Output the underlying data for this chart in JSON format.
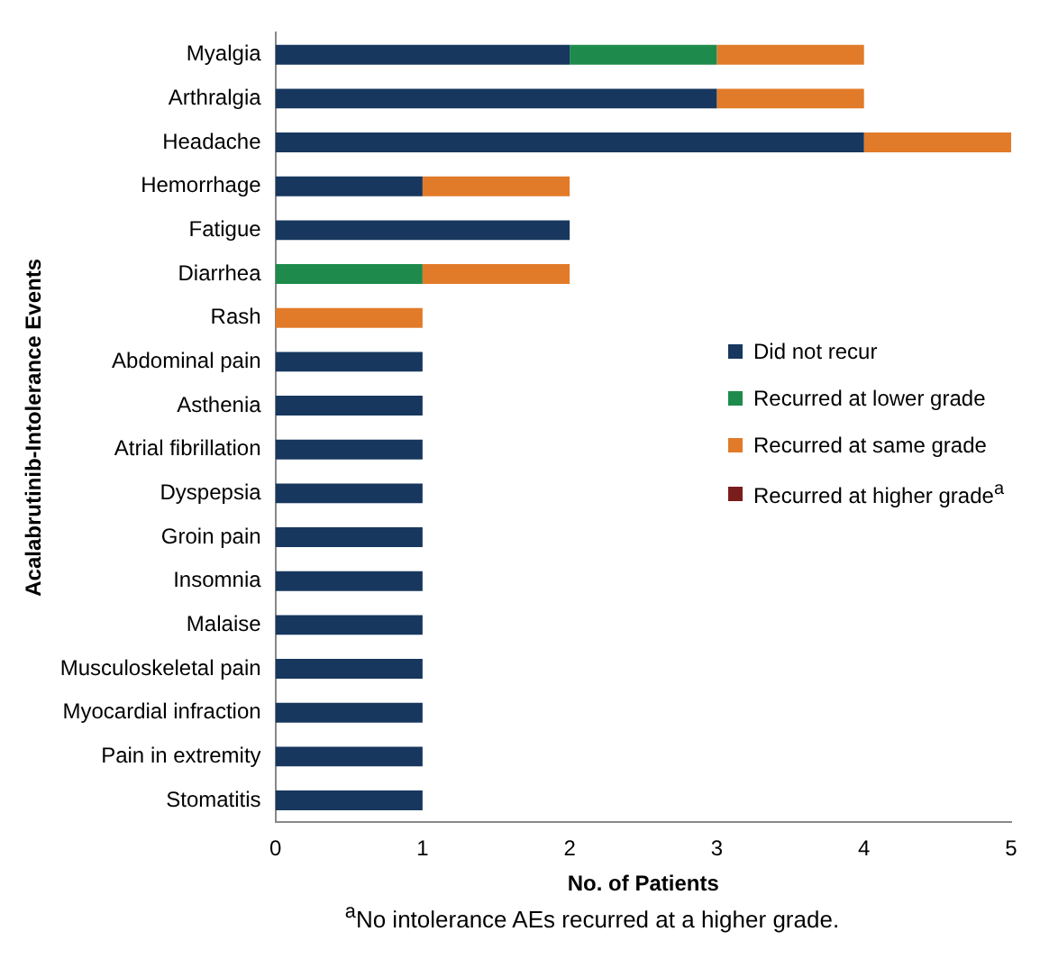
{
  "chart_data": {
    "type": "bar",
    "orientation": "horizontal",
    "stacked": true,
    "xlabel": "No. of Patients",
    "ylabel": "Acalabrutinib-Intolerance Events",
    "categories": [
      "Myalgia",
      "Arthralgia",
      "Headache",
      "Hemorrhage",
      "Fatigue",
      "Diarrhea",
      "Rash",
      "Abdominal pain",
      "Asthenia",
      "Atrial fibrillation",
      "Dyspepsia",
      "Groin pain",
      "Insomnia",
      "Malaise",
      "Musculoskeletal pain",
      "Myocardial infraction",
      "Pain in extremity",
      "Stomatitis"
    ],
    "series": [
      {
        "name": "Did not recur",
        "color": "#17375e",
        "values": [
          2,
          3,
          4,
          1,
          2,
          0,
          0,
          1,
          1,
          1,
          1,
          1,
          1,
          1,
          1,
          1,
          1,
          1
        ]
      },
      {
        "name": "Recurred at lower grade",
        "color": "#1e8b4c",
        "values": [
          1,
          0,
          0,
          0,
          0,
          1,
          0,
          0,
          0,
          0,
          0,
          0,
          0,
          0,
          0,
          0,
          0,
          0
        ]
      },
      {
        "name": "Recurred at same grade",
        "color": "#e17b2a",
        "values": [
          1,
          1,
          1,
          1,
          0,
          1,
          1,
          0,
          0,
          0,
          0,
          0,
          0,
          0,
          0,
          0,
          0,
          0
        ]
      },
      {
        "name": "Recurred at higher grade$^{a}$",
        "color": "#7b1c1c",
        "values": [
          0,
          0,
          0,
          0,
          0,
          0,
          0,
          0,
          0,
          0,
          0,
          0,
          0,
          0,
          0,
          0,
          0,
          0
        ]
      }
    ],
    "xlim": [
      0,
      5
    ],
    "xticks": [
      0,
      1,
      2,
      3,
      4,
      5
    ],
    "grid": false,
    "legend": "right",
    "annotations": [
      "$^{a}$No intolerance AEs recurred at a higher grade."
    ]
  }
}
